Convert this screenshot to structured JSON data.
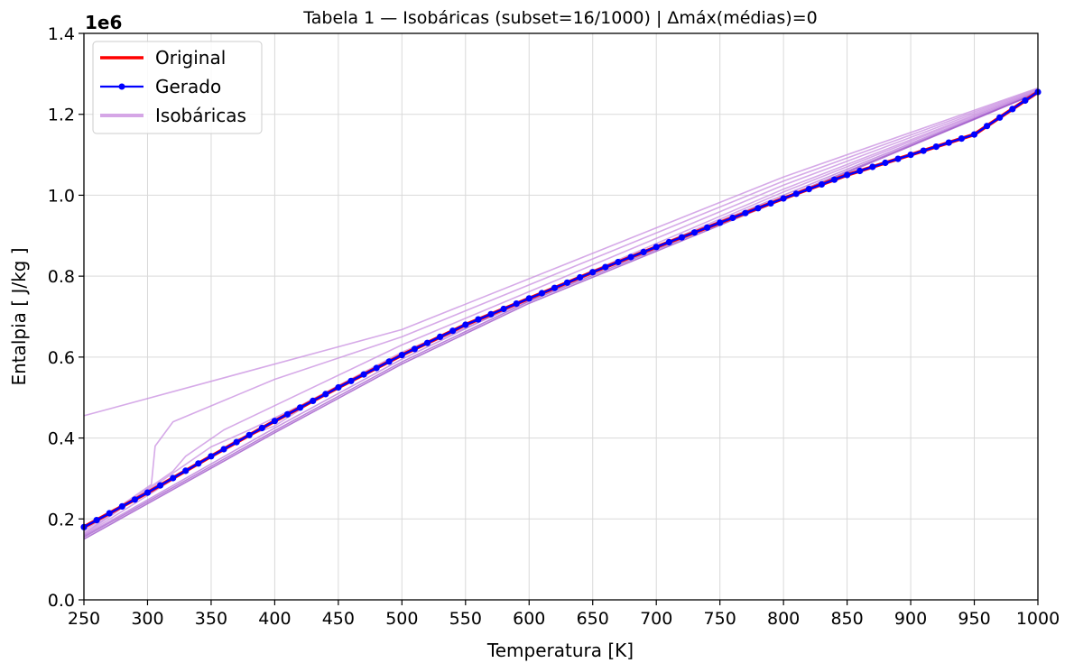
{
  "chart_data": {
    "type": "line",
    "title": "Tabela 1 — Isobáricas (subset=16/1000)  |  Δmáx(médias)=0",
    "xlabel": "Temperatura [K]",
    "ylabel": "Entalpia [ J/kg ]",
    "y_offset_label": "1e6",
    "xlim": [
      250,
      1000
    ],
    "ylim": [
      0,
      1400000
    ],
    "x_ticks": [
      250,
      300,
      350,
      400,
      450,
      500,
      550,
      600,
      650,
      700,
      750,
      800,
      850,
      900,
      950,
      1000
    ],
    "y_ticks": [
      0,
      200000,
      400000,
      600000,
      800000,
      1000000,
      1200000,
      1400000
    ],
    "y_tick_labels": [
      "0.0",
      "0.2",
      "0.4",
      "0.6",
      "0.8",
      "1.0",
      "1.2",
      "1.4"
    ],
    "grid": true,
    "legend_position": "top-left",
    "legend": [
      {
        "label": "Original",
        "color": "#ff0000",
        "style": "line"
      },
      {
        "label": "Gerado",
        "color": "#0000ff",
        "style": "line-marker"
      },
      {
        "label": "Isobáricas",
        "color": "#d5a6e6",
        "style": "thick-line"
      }
    ],
    "series": [
      {
        "name": "Original",
        "color": "#ff0000",
        "x": [
          250,
          300,
          350,
          400,
          450,
          500,
          550,
          600,
          650,
          700,
          750,
          800,
          850,
          900,
          950,
          1000
        ],
        "y": [
          180000,
          265000,
          355000,
          442000,
          525000,
          605000,
          680000,
          745000,
          810000,
          872000,
          932000,
          992000,
          1050000,
          1100000,
          1150000,
          1255000
        ]
      },
      {
        "name": "Gerado",
        "color": "#0000ff",
        "marker": "circle",
        "marker_step": 5,
        "x": [
          250,
          300,
          350,
          400,
          450,
          500,
          550,
          600,
          650,
          700,
          750,
          800,
          850,
          900,
          950,
          1000
        ],
        "y": [
          180000,
          265000,
          355000,
          442000,
          525000,
          605000,
          680000,
          745000,
          810000,
          872000,
          932000,
          992000,
          1050000,
          1100000,
          1150000,
          1255000
        ]
      }
    ],
    "isobars": [
      {
        "color": "#c88de0",
        "x": [
          250,
          500,
          800,
          1000
        ],
        "y": [
          455000,
          668000,
          1045000,
          1265000
        ]
      },
      {
        "color": "#c88de0",
        "x": [
          250,
          303,
          306,
          320,
          400,
          500,
          800,
          1000
        ],
        "y": [
          170000,
          285000,
          380000,
          440000,
          545000,
          650000,
          1035000,
          1263000
        ]
      },
      {
        "color": "#c88de0",
        "x": [
          250,
          320,
          330,
          360,
          400,
          500,
          800,
          1000
        ],
        "y": [
          165000,
          318000,
          355000,
          420000,
          480000,
          630000,
          1025000,
          1261000
        ]
      },
      {
        "color": "#c88de0",
        "x": [
          250,
          350,
          380,
          420,
          500,
          800,
          1000
        ],
        "y": [
          162000,
          378000,
          420000,
          480000,
          612000,
          1015000,
          1259000
        ]
      },
      {
        "color": "#c88de0",
        "x": [
          250,
          370,
          400,
          450,
          500,
          800,
          1000
        ],
        "y": [
          160000,
          395000,
          430000,
          530000,
          605000,
          1008000,
          1258000
        ]
      },
      {
        "color": "#b87ad8",
        "x": [
          250,
          400,
          500,
          600,
          800,
          1000
        ],
        "y": [
          158000,
          425000,
          595000,
          745000,
          1000000,
          1256000
        ]
      },
      {
        "color": "#a45ccc",
        "x": [
          250,
          400,
          500,
          600,
          800,
          1000
        ],
        "y": [
          155000,
          418000,
          588000,
          738000,
          994000,
          1254000
        ]
      },
      {
        "color": "#9a4ec6",
        "x": [
          250,
          400,
          500,
          600,
          800,
          1000
        ],
        "y": [
          150000,
          413000,
          583000,
          733000,
          990000,
          1253000
        ]
      }
    ]
  }
}
